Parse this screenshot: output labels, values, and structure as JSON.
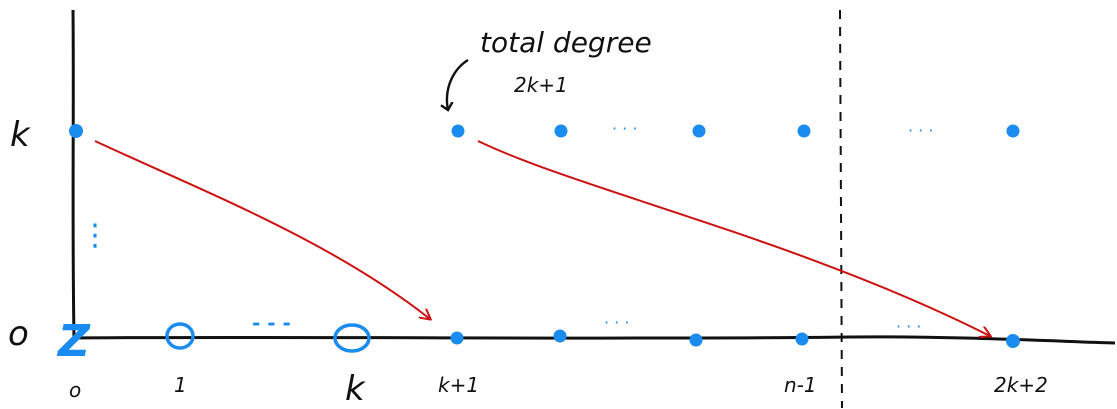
{
  "colors": {
    "axis": "#111111",
    "dot": "#1a8cf0",
    "arrow": "#cc1111",
    "text": "#111111"
  },
  "y_axis_labels": {
    "top": "k",
    "bottom": "o"
  },
  "x_axis_labels": {
    "zero": "o",
    "one": "1",
    "k": "k",
    "k_plus_1": "k+1",
    "n_minus_1": "n-1",
    "two_k_plus_2": "2k+2"
  },
  "zero_row_symbol": "Z",
  "ellipses": {
    "vertical": "⋮",
    "bottom_left": "- - -",
    "bottom_mid": "· · ·",
    "bottom_right": "· · ·",
    "top_mid": "· · ·",
    "top_right": "· · ·"
  },
  "annotation": {
    "line1": "total degree",
    "line2": "2k+1"
  }
}
